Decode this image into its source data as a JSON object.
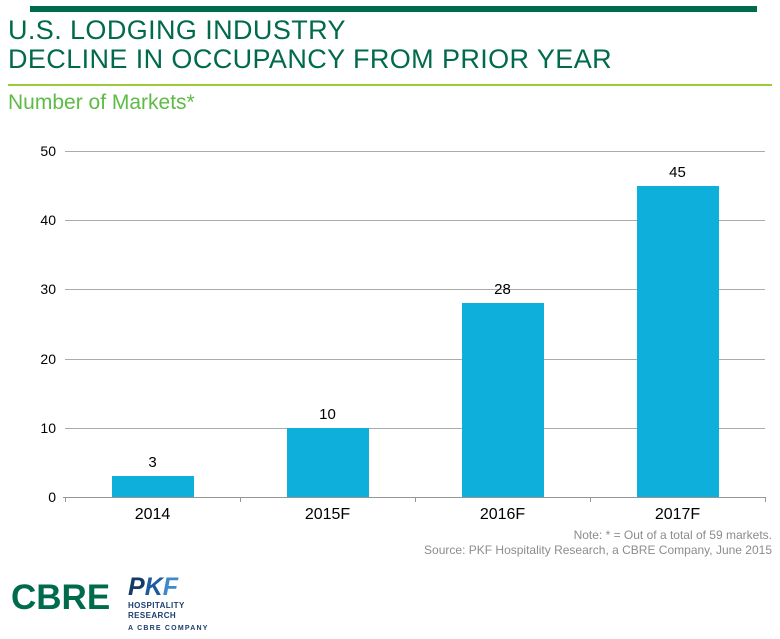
{
  "header": {
    "title_line1": "U.S. LODGING INDUSTRY",
    "title_line2": "DECLINE IN OCCUPANCY FROM PRIOR YEAR",
    "subtitle": "Number of Markets*"
  },
  "chart_data": {
    "type": "bar",
    "categories": [
      "2014",
      "2015F",
      "2016F",
      "2017F"
    ],
    "values": [
      3,
      10,
      28,
      45
    ],
    "title": "U.S. Lodging Industry Decline in Occupancy from Prior Year",
    "xlabel": "",
    "ylabel": "Number of Markets",
    "ylim": [
      0,
      50
    ],
    "yticks": [
      0,
      10,
      20,
      30,
      40,
      50
    ],
    "grid": true,
    "legend": "none",
    "bar_color": "#0FAFDC"
  },
  "notes": {
    "note_line": "Note: * = Out of a total of 59 markets.",
    "source_line": "Source: PKF Hospitality Research, a CBRE Company, June 2015"
  },
  "footer": {
    "cbre_logo_text": "CBRE",
    "pkf_logo": {
      "p": "P",
      "k": "K",
      "f": "F",
      "line1": "HOSPITALITY",
      "line2": "RESEARCH",
      "tagline": "A CBRE COMPANY"
    }
  },
  "colors": {
    "cbre_green": "#006A4D",
    "accent_green": "#5DBB46",
    "rule_green": "#9BCB3C",
    "bar_cyan": "#0FAFDC",
    "grid_gray": "#ABABAB",
    "note_gray": "#8C8C8C",
    "pkf_navy": "#1B3E6F"
  }
}
